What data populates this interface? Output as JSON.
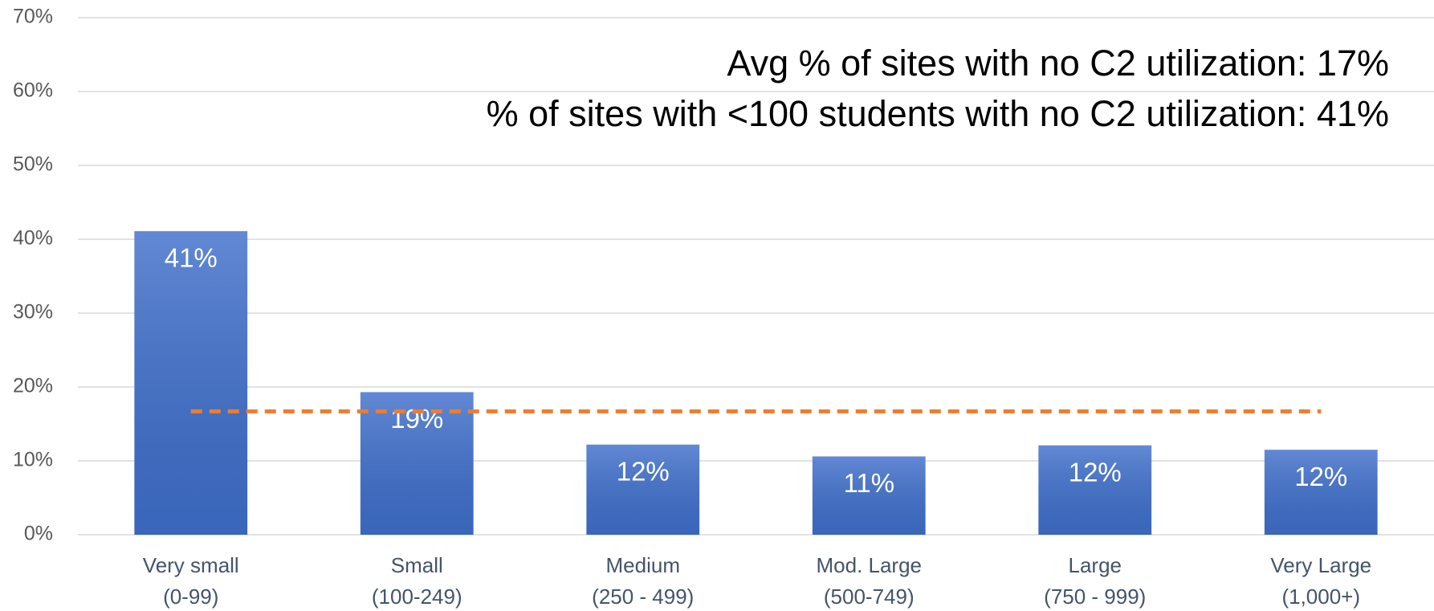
{
  "chart_data": {
    "type": "bar",
    "categories": [
      [
        "Very small",
        "(0-99)"
      ],
      [
        "Small",
        "(100-249)"
      ],
      [
        "Medium",
        "(250 - 499)"
      ],
      [
        "Mod. Large",
        "(500-749)"
      ],
      [
        "Large",
        "(750 - 999)"
      ],
      [
        "Very Large",
        "(1,000+)"
      ]
    ],
    "values": [
      41.1,
      19.3,
      12.2,
      10.6,
      12.1,
      11.5
    ],
    "value_labels": [
      "41%",
      "19%",
      "12%",
      "11%",
      "12%",
      "12%"
    ],
    "color": "#3f6fcb",
    "average": 16.7,
    "average_color": "#ed7d31",
    "annotations": [
      "Avg % of sites with no C2 utilization: 17%",
      "% of sites with <100 students with no C2 utilization: 41%"
    ],
    "ylim": [
      0,
      70
    ],
    "yticks": [
      {
        "value": 0,
        "label": "0%"
      },
      {
        "value": 10,
        "label": "10%"
      },
      {
        "value": 20,
        "label": "20%"
      },
      {
        "value": 30,
        "label": "30%"
      },
      {
        "value": 40,
        "label": "40%"
      },
      {
        "value": 50,
        "label": "50%"
      },
      {
        "value": 60,
        "label": "60%"
      },
      {
        "value": 70,
        "label": "70%"
      }
    ],
    "grid": true
  }
}
